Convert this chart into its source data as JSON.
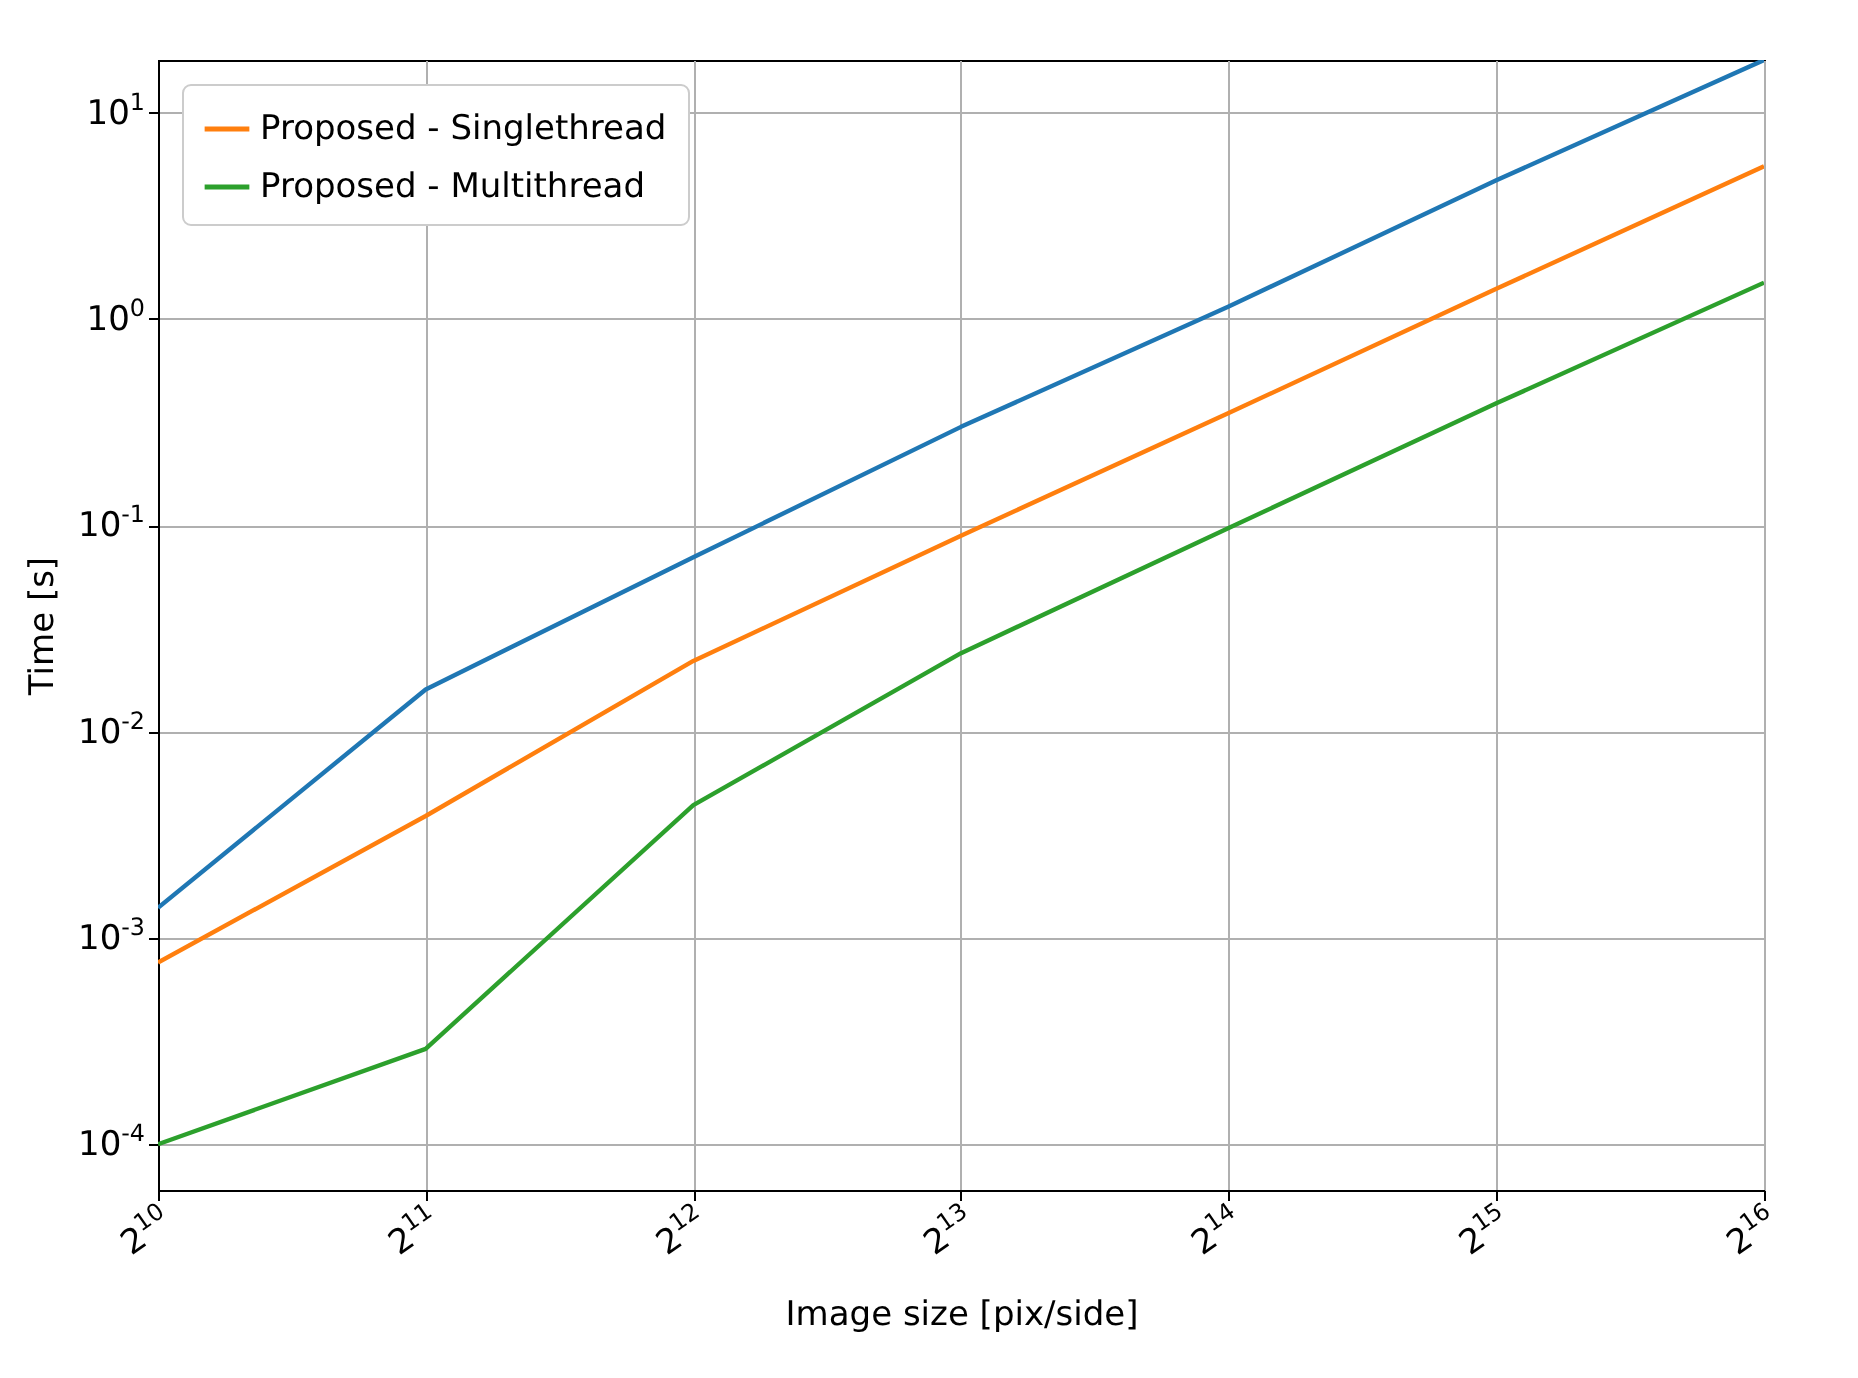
{
  "chart_data": {
    "type": "line",
    "xlabel": "Image size [pix/side]",
    "ylabel": "Time [s]",
    "x": [
      1024,
      2048,
      4096,
      8192,
      16384,
      32768,
      65536
    ],
    "series": [
      {
        "color": "#1f77b4",
        "values": [
          0.0014,
          0.016,
          0.07,
          0.3,
          1.15,
          4.7,
          18
        ]
      },
      {
        "name": "Proposed - Singlethread",
        "color": "#ff7f0e",
        "values": [
          0.00076,
          0.0039,
          0.022,
          0.089,
          0.35,
          1.4,
          5.5
        ]
      },
      {
        "name": "Proposed - Multithread",
        "color": "#2ca02c",
        "values": [
          0.0001,
          0.00029,
          0.0044,
          0.024,
          0.097,
          0.39,
          1.5
        ]
      }
    ],
    "log": "xy",
    "xlim": [
      1024,
      65536
    ],
    "ylim": [
      6e-05,
      18
    ],
    "xticks": [
      {
        "value": 1024,
        "label": "2$^{10}$"
      },
      {
        "value": 2048,
        "label": "2$^{11}$"
      },
      {
        "value": 4096,
        "label": "2$^{12}$"
      },
      {
        "value": 8192,
        "label": "2$^{13}$"
      },
      {
        "value": 16384,
        "label": "2$^{14}$"
      },
      {
        "value": 32768,
        "label": "2$^{15}$"
      },
      {
        "value": 65536,
        "label": "2$^{16}$"
      }
    ],
    "yticks": [
      {
        "value": 0.0001,
        "label": "10$^{-4}$"
      },
      {
        "value": 0.001,
        "label": "10$^{-3}$"
      },
      {
        "value": 0.01,
        "label": "10$^{-2}$"
      },
      {
        "value": 0.1,
        "label": "10$^{-1}$"
      },
      {
        "value": 1,
        "label": "10$^{0}$"
      },
      {
        "value": 10,
        "label": "10$^{1}$"
      }
    ],
    "grid": true,
    "legend": "top left",
    "line_style": "solid",
    "marker": "none"
  }
}
